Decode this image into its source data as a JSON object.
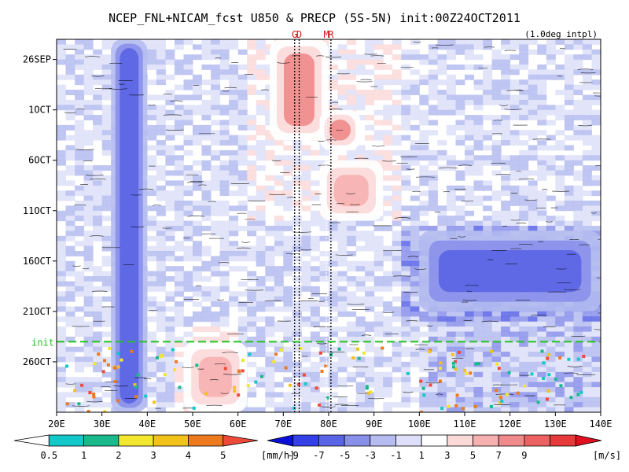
{
  "chart_data": {
    "type": "heatmap",
    "title": "NCEP_FNL+NICAM_fcst U850 & PRECP (5S-5N) init:00Z24OCT2011",
    "subtitle": "(1.0deg intpl)",
    "x_axis": {
      "range": [
        20,
        140
      ],
      "ticks": [
        {
          "value": 20,
          "label": "20E"
        },
        {
          "value": 30,
          "label": "30E"
        },
        {
          "value": 40,
          "label": "40E"
        },
        {
          "value": 50,
          "label": "50E"
        },
        {
          "value": 60,
          "label": "60E"
        },
        {
          "value": 70,
          "label": "70E"
        },
        {
          "value": 80,
          "label": "80E"
        },
        {
          "value": 90,
          "label": "90E"
        },
        {
          "value": 100,
          "label": "100E"
        },
        {
          "value": 110,
          "label": "110E"
        },
        {
          "value": 120,
          "label": "120E"
        },
        {
          "value": 130,
          "label": "130E"
        },
        {
          "value": 140,
          "label": "140E"
        }
      ]
    },
    "y_axis": {
      "range": [
        "2011-09-24",
        "2011-10-31"
      ],
      "ticks": [
        {
          "value": "2011-09-26",
          "label": "26SEP"
        },
        {
          "value": "2011-10-01",
          "label": "1OCT"
        },
        {
          "value": "2011-10-06",
          "label": "6OCT"
        },
        {
          "value": "2011-10-11",
          "label": "11OCT"
        },
        {
          "value": "2011-10-16",
          "label": "16OCT"
        },
        {
          "value": "2011-10-21",
          "label": "21OCT"
        },
        {
          "value": "2011-10-26",
          "label": "26OCT"
        }
      ]
    },
    "markers": [
      {
        "label": "G",
        "lon": 72.5
      },
      {
        "label": "D",
        "lon": 73.5
      },
      {
        "label": "M",
        "lon": 79.5
      },
      {
        "label": "R",
        "lon": 80.5
      }
    ],
    "init_line": {
      "label": "init",
      "date": "2011-10-24"
    },
    "u850_features": [
      {
        "lon_min": 32,
        "lon_max": 40,
        "date_start": "2011-09-24",
        "date_end": "2011-10-31",
        "u_ms": -6
      },
      {
        "lon_min": 67,
        "lon_max": 80,
        "date_start": "2011-09-24",
        "date_end": "2011-10-04",
        "u_ms": 8
      },
      {
        "lon_min": 78,
        "lon_max": 87,
        "date_start": "2011-10-01",
        "date_end": "2011-10-05",
        "u_ms": 8
      },
      {
        "lon_min": 78,
        "lon_max": 92,
        "date_start": "2011-10-06",
        "date_end": "2011-10-12",
        "u_ms": 6
      },
      {
        "lon_min": 100,
        "lon_max": 140,
        "date_start": "2011-10-13",
        "date_end": "2011-10-21",
        "u_ms": -6
      },
      {
        "lon_min": 48,
        "lon_max": 62,
        "date_start": "2011-10-24",
        "date_end": "2011-10-31",
        "u_ms": 7
      }
    ],
    "precip_colorbar": {
      "unit": "[mm/h]",
      "ticks": [
        "0.5",
        "1",
        "2",
        "3",
        "4",
        "5"
      ],
      "colors": [
        "#ffffff",
        "#12c8c8",
        "#1ab98c",
        "#f2e62e",
        "#f2c21a",
        "#ee7a20",
        "#ee4a3a"
      ]
    },
    "u850_colorbar": {
      "unit": "[m/s]",
      "ticks": [
        "-9",
        "-7",
        "-5",
        "-3",
        "-1",
        "1",
        "3",
        "5",
        "7",
        "9"
      ],
      "colors": [
        "#0a10d6",
        "#3340e6",
        "#5a64e6",
        "#8990ea",
        "#b5bcf0",
        "#dde0f8",
        "#ffffff",
        "#fbd9d9",
        "#f6b0b0",
        "#f08a8a",
        "#ec6262",
        "#e63a3a",
        "#e01020"
      ]
    }
  }
}
